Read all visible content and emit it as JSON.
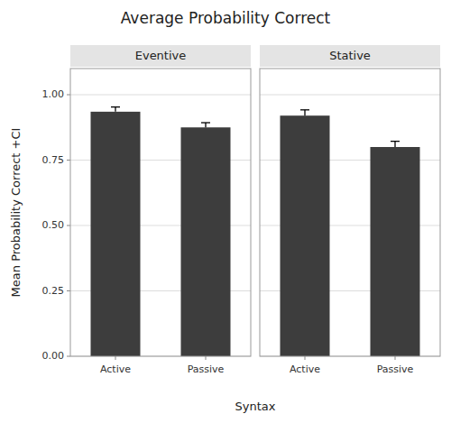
{
  "chart_data": {
    "type": "bar",
    "title": "Average Probability Correct",
    "xlabel": "Syntax",
    "ylabel": "Mean Probability Correct +CI",
    "categories": [
      "Active",
      "Passive"
    ],
    "series": [
      {
        "name": "Eventive",
        "values": [
          0.935,
          0.875
        ],
        "ci": [
          0.018,
          0.018
        ]
      },
      {
        "name": "Stative",
        "values": [
          0.92,
          0.8
        ],
        "ci": [
          0.022,
          0.022
        ]
      }
    ],
    "color": "#3d3d3d",
    "ylim": [
      0,
      1.1
    ],
    "yticks": [
      {
        "value": 0.0,
        "label": "0.00"
      },
      {
        "value": 0.25,
        "label": "0.25"
      },
      {
        "value": 0.5,
        "label": "0.50"
      },
      {
        "value": 0.75,
        "label": "0.75"
      },
      {
        "value": 1.0,
        "label": "1.00"
      }
    ],
    "grid": true
  }
}
